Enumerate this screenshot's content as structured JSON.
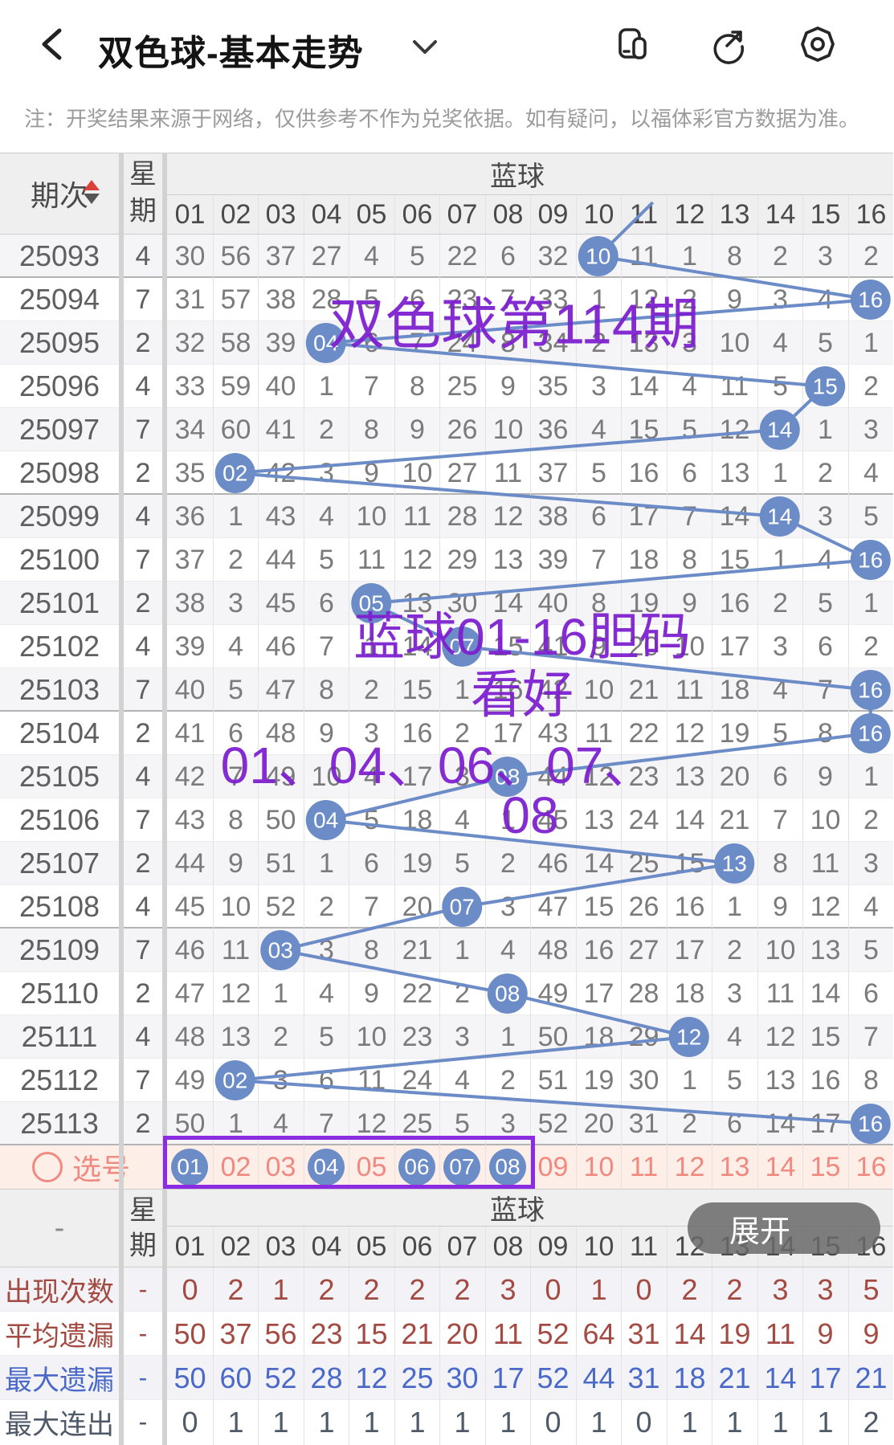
{
  "app_bar": {
    "title": "双色球-基本走势",
    "icons": [
      "back",
      "dropdown",
      "multi-window",
      "share",
      "settings"
    ]
  },
  "notice": "注：开奖结果来源于网络，仅供参考不作为兑奖依据。如有疑问，以福体彩官方数据为准。",
  "main_table": {
    "period_header": "期次",
    "week_header": "星期",
    "group_header": "蓝球",
    "col_headers": [
      "01",
      "02",
      "03",
      "04",
      "05",
      "06",
      "07",
      "08",
      "09",
      "10",
      "11",
      "12",
      "13",
      "14",
      "15",
      "16"
    ],
    "rows": [
      {
        "period": "25093",
        "week": "4",
        "ball": "10",
        "ball_col": 10,
        "cells": [
          "30",
          "56",
          "37",
          "27",
          "4",
          "5",
          "22",
          "6",
          "32",
          "10",
          "11",
          "1",
          "8",
          "2",
          "3",
          "2"
        ]
      },
      {
        "period": "25094",
        "week": "7",
        "ball": "16",
        "ball_col": 16,
        "cells": [
          "31",
          "57",
          "38",
          "28",
          "5",
          "6",
          "23",
          "7",
          "33",
          "1",
          "12",
          "2",
          "9",
          "3",
          "4",
          "16"
        ]
      },
      {
        "period": "25095",
        "week": "2",
        "ball": "04",
        "ball_col": 4,
        "cells": [
          "32",
          "58",
          "39",
          "04",
          "6",
          "7",
          "24",
          "8",
          "34",
          "2",
          "13",
          "3",
          "10",
          "4",
          "5",
          "1"
        ]
      },
      {
        "period": "25096",
        "week": "4",
        "ball": "15",
        "ball_col": 15,
        "cells": [
          "33",
          "59",
          "40",
          "1",
          "7",
          "8",
          "25",
          "9",
          "35",
          "3",
          "14",
          "4",
          "11",
          "5",
          "15",
          "2"
        ]
      },
      {
        "period": "25097",
        "week": "7",
        "ball": "14",
        "ball_col": 14,
        "cells": [
          "34",
          "60",
          "41",
          "2",
          "8",
          "9",
          "26",
          "10",
          "36",
          "4",
          "15",
          "5",
          "12",
          "14",
          "1",
          "3"
        ]
      },
      {
        "period": "25098",
        "week": "2",
        "ball": "02",
        "ball_col": 2,
        "cells": [
          "35",
          "02",
          "42",
          "3",
          "9",
          "10",
          "27",
          "11",
          "37",
          "5",
          "16",
          "6",
          "13",
          "1",
          "2",
          "4"
        ]
      },
      {
        "period": "25099",
        "week": "4",
        "ball": "14",
        "ball_col": 14,
        "cells": [
          "36",
          "1",
          "43",
          "4",
          "10",
          "11",
          "28",
          "12",
          "38",
          "6",
          "17",
          "7",
          "14",
          "14",
          "3",
          "5"
        ]
      },
      {
        "period": "25100",
        "week": "7",
        "ball": "16",
        "ball_col": 16,
        "cells": [
          "37",
          "2",
          "44",
          "5",
          "11",
          "12",
          "29",
          "13",
          "39",
          "7",
          "18",
          "8",
          "15",
          "1",
          "4",
          "16"
        ]
      },
      {
        "period": "25101",
        "week": "2",
        "ball": "05",
        "ball_col": 5,
        "cells": [
          "38",
          "3",
          "45",
          "6",
          "05",
          "13",
          "30",
          "14",
          "40",
          "8",
          "19",
          "9",
          "16",
          "2",
          "5",
          "1"
        ]
      },
      {
        "period": "25102",
        "week": "4",
        "ball": "07",
        "ball_col": 7,
        "cells": [
          "39",
          "4",
          "46",
          "7",
          "1",
          "14",
          "07",
          "15",
          "41",
          "9",
          "20",
          "10",
          "17",
          "3",
          "6",
          "2"
        ]
      },
      {
        "period": "25103",
        "week": "7",
        "ball": "16",
        "ball_col": 16,
        "cells": [
          "40",
          "5",
          "47",
          "8",
          "2",
          "15",
          "1",
          "16",
          "42",
          "10",
          "21",
          "11",
          "18",
          "4",
          "7",
          "16"
        ]
      },
      {
        "period": "25104",
        "week": "2",
        "ball": "16",
        "ball_col": 16,
        "cells": [
          "41",
          "6",
          "48",
          "9",
          "3",
          "16",
          "2",
          "17",
          "43",
          "11",
          "22",
          "12",
          "19",
          "5",
          "8",
          "16"
        ]
      },
      {
        "period": "25105",
        "week": "4",
        "ball": "08",
        "ball_col": 8,
        "cells": [
          "42",
          "7",
          "49",
          "10",
          "4",
          "17",
          "3",
          "08",
          "44",
          "12",
          "23",
          "13",
          "20",
          "6",
          "9",
          "1"
        ]
      },
      {
        "period": "25106",
        "week": "7",
        "ball": "04",
        "ball_col": 4,
        "cells": [
          "43",
          "8",
          "50",
          "04",
          "5",
          "18",
          "4",
          "1",
          "45",
          "13",
          "24",
          "14",
          "21",
          "7",
          "10",
          "2"
        ]
      },
      {
        "period": "25107",
        "week": "2",
        "ball": "13",
        "ball_col": 13,
        "cells": [
          "44",
          "9",
          "51",
          "1",
          "6",
          "19",
          "5",
          "2",
          "46",
          "14",
          "25",
          "15",
          "13",
          "8",
          "11",
          "3"
        ]
      },
      {
        "period": "25108",
        "week": "4",
        "ball": "07",
        "ball_col": 7,
        "cells": [
          "45",
          "10",
          "52",
          "2",
          "7",
          "20",
          "07",
          "3",
          "47",
          "15",
          "26",
          "16",
          "1",
          "9",
          "12",
          "4"
        ]
      },
      {
        "period": "25109",
        "week": "7",
        "ball": "03",
        "ball_col": 3,
        "cells": [
          "46",
          "11",
          "03",
          "3",
          "8",
          "21",
          "1",
          "4",
          "48",
          "16",
          "27",
          "17",
          "2",
          "10",
          "13",
          "5"
        ]
      },
      {
        "period": "25110",
        "week": "2",
        "ball": "08",
        "ball_col": 8,
        "cells": [
          "47",
          "12",
          "1",
          "4",
          "9",
          "22",
          "2",
          "08",
          "49",
          "17",
          "28",
          "18",
          "3",
          "11",
          "14",
          "6"
        ]
      },
      {
        "period": "25111",
        "week": "4",
        "ball": "12",
        "ball_col": 12,
        "cells": [
          "48",
          "13",
          "2",
          "5",
          "10",
          "23",
          "3",
          "1",
          "50",
          "18",
          "29",
          "12",
          "4",
          "12",
          "15",
          "7"
        ]
      },
      {
        "period": "25112",
        "week": "7",
        "ball": "02",
        "ball_col": 2,
        "cells": [
          "49",
          "02",
          "3",
          "6",
          "11",
          "24",
          "4",
          "2",
          "51",
          "19",
          "30",
          "1",
          "5",
          "13",
          "16",
          "8"
        ]
      },
      {
        "period": "25113",
        "week": "2",
        "ball": "16",
        "ball_col": 16,
        "cells": [
          "50",
          "1",
          "4",
          "7",
          "12",
          "25",
          "5",
          "3",
          "52",
          "20",
          "31",
          "2",
          "6",
          "14",
          "17",
          "16"
        ]
      }
    ]
  },
  "selection": {
    "label": "选号",
    "numbers": [
      "01",
      "02",
      "03",
      "04",
      "05",
      "06",
      "07",
      "08",
      "09",
      "10",
      "11",
      "12",
      "13",
      "14",
      "15",
      "16"
    ],
    "selected": [
      "01",
      "04",
      "06",
      "07",
      "08"
    ]
  },
  "watermark": {
    "line1": "双色球第114期",
    "line2": "蓝球01-16胆码",
    "line3": "看好",
    "line4": "01、04、06、07、",
    "line5": "08"
  },
  "bottom_table": {
    "corner": "-",
    "week_header": "星期",
    "group_header": "蓝球",
    "col_headers": [
      "01",
      "02",
      "03",
      "04",
      "05",
      "06",
      "07",
      "08",
      "09",
      "10",
      "11",
      "12",
      "13",
      "14",
      "15",
      "16"
    ],
    "rows": [
      {
        "label": "出现次数",
        "week": "-",
        "color": "red",
        "values": [
          "0",
          "2",
          "1",
          "2",
          "2",
          "2",
          "2",
          "3",
          "0",
          "1",
          "0",
          "2",
          "2",
          "3",
          "3",
          "5"
        ]
      },
      {
        "label": "平均遗漏",
        "week": "-",
        "color": "red",
        "values": [
          "50",
          "37",
          "56",
          "23",
          "15",
          "21",
          "20",
          "11",
          "52",
          "64",
          "31",
          "14",
          "19",
          "11",
          "9",
          "9"
        ]
      },
      {
        "label": "最大遗漏",
        "week": "-",
        "color": "blue",
        "values": [
          "50",
          "60",
          "52",
          "28",
          "12",
          "25",
          "30",
          "17",
          "52",
          "44",
          "31",
          "18",
          "21",
          "14",
          "17",
          "21"
        ]
      },
      {
        "label": "最大连出",
        "week": "-",
        "color": "dark",
        "values": [
          "0",
          "1",
          "1",
          "1",
          "1",
          "1",
          "1",
          "1",
          "0",
          "1",
          "0",
          "1",
          "1",
          "1",
          "1",
          "2"
        ]
      }
    ]
  },
  "expand_button": "展开",
  "colors": {
    "ball_blue": "#6c8cc8",
    "watermark_purple": "#7d1fd0",
    "selection_pink": "#f0897f",
    "selection_bg": "#fdeee8",
    "stat_red": "#a34a42",
    "stat_blue": "#4a69c8",
    "stat_dark": "#4e5a68",
    "selection_rect_purple": "#8b2be2"
  }
}
